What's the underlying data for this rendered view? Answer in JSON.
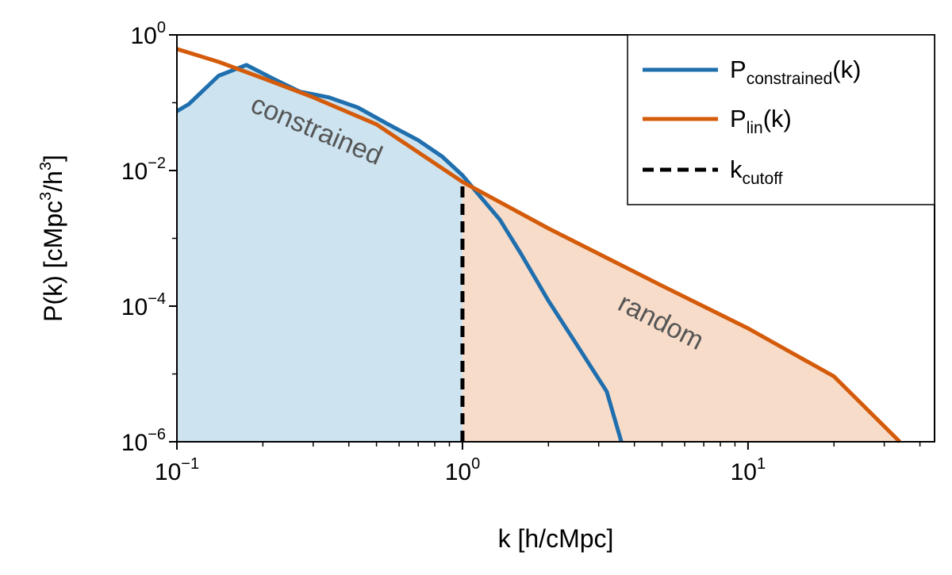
{
  "chart_data": {
    "type": "line",
    "xscale": "log",
    "yscale": "log",
    "xlim": [
      0.1,
      45
    ],
    "ylim": [
      1e-06,
      1
    ],
    "xlabel": "k [h/cMpc]",
    "ylabel": {
      "main": "P(k) [cMpc",
      "sup1": "3",
      "mid": "/h",
      "sup2": "3",
      "end": "]"
    },
    "x_ticks": [
      {
        "value": 0.1,
        "base": "10",
        "exp": "−1"
      },
      {
        "value": 1,
        "base": "10",
        "exp": "0"
      },
      {
        "value": 10,
        "base": "10",
        "exp": "1"
      }
    ],
    "y_ticks": [
      {
        "value": 1,
        "base": "10",
        "exp": "0"
      },
      {
        "value": 0.01,
        "base": "10",
        "exp": "−2"
      },
      {
        "value": 0.0001,
        "base": "10",
        "exp": "−4"
      },
      {
        "value": 1e-06,
        "base": "10",
        "exp": "−6"
      }
    ],
    "series": [
      {
        "name": "P_constrained(k)",
        "color": "#1f6fae",
        "x": [
          0.1,
          0.11,
          0.14,
          0.175,
          0.22,
          0.27,
          0.34,
          0.43,
          0.55,
          0.7,
          0.85,
          1.0,
          1.15,
          1.35,
          1.6,
          2.0,
          2.5,
          3.2,
          3.6
        ],
        "y": [
          0.075,
          0.095,
          0.25,
          0.36,
          0.22,
          0.145,
          0.12,
          0.085,
          0.048,
          0.028,
          0.016,
          0.0085,
          0.0042,
          0.0019,
          0.0006,
          0.00012,
          2.8e-05,
          5.5e-06,
          1e-06
        ]
      },
      {
        "name": "P_lin(k)",
        "color": "#d45b0a",
        "x": [
          0.1,
          0.14,
          0.2,
          0.3,
          0.5,
          1.0,
          2.0,
          5.0,
          10.0,
          20.0,
          34.0
        ],
        "y": [
          0.62,
          0.4,
          0.23,
          0.12,
          0.048,
          0.0068,
          0.0014,
          0.0002,
          4.7e-05,
          9.2e-06,
          1e-06
        ]
      }
    ],
    "cutoff": {
      "name": "k_cutoff",
      "x": 1.0,
      "color": "#000000"
    },
    "fills": [
      {
        "region": "constrained",
        "x_from": 0.1,
        "x_to": 1.0,
        "color": "#cde3f0"
      },
      {
        "region": "random",
        "x_from": 1.0,
        "x_to": 34.0,
        "color": "#f7dcc9"
      }
    ],
    "annotations": [
      {
        "text": "constrained",
        "x": 0.3,
        "y": 0.03,
        "rotation": 23
      },
      {
        "text": "random",
        "x": 4.8,
        "y": 4.5e-05,
        "rotation": 27
      }
    ],
    "legend": {
      "placement": "top-right",
      "entries": [
        {
          "base": "P",
          "sub": "constrained",
          "tail": "(k)",
          "color": "#1f6fae",
          "style": "solid"
        },
        {
          "base": "P",
          "sub": "lin",
          "tail": "(k)",
          "color": "#d45b0a",
          "style": "solid"
        },
        {
          "base": "k",
          "sub": "cutoff",
          "tail": "",
          "color": "#000000",
          "style": "dashed"
        }
      ]
    }
  }
}
